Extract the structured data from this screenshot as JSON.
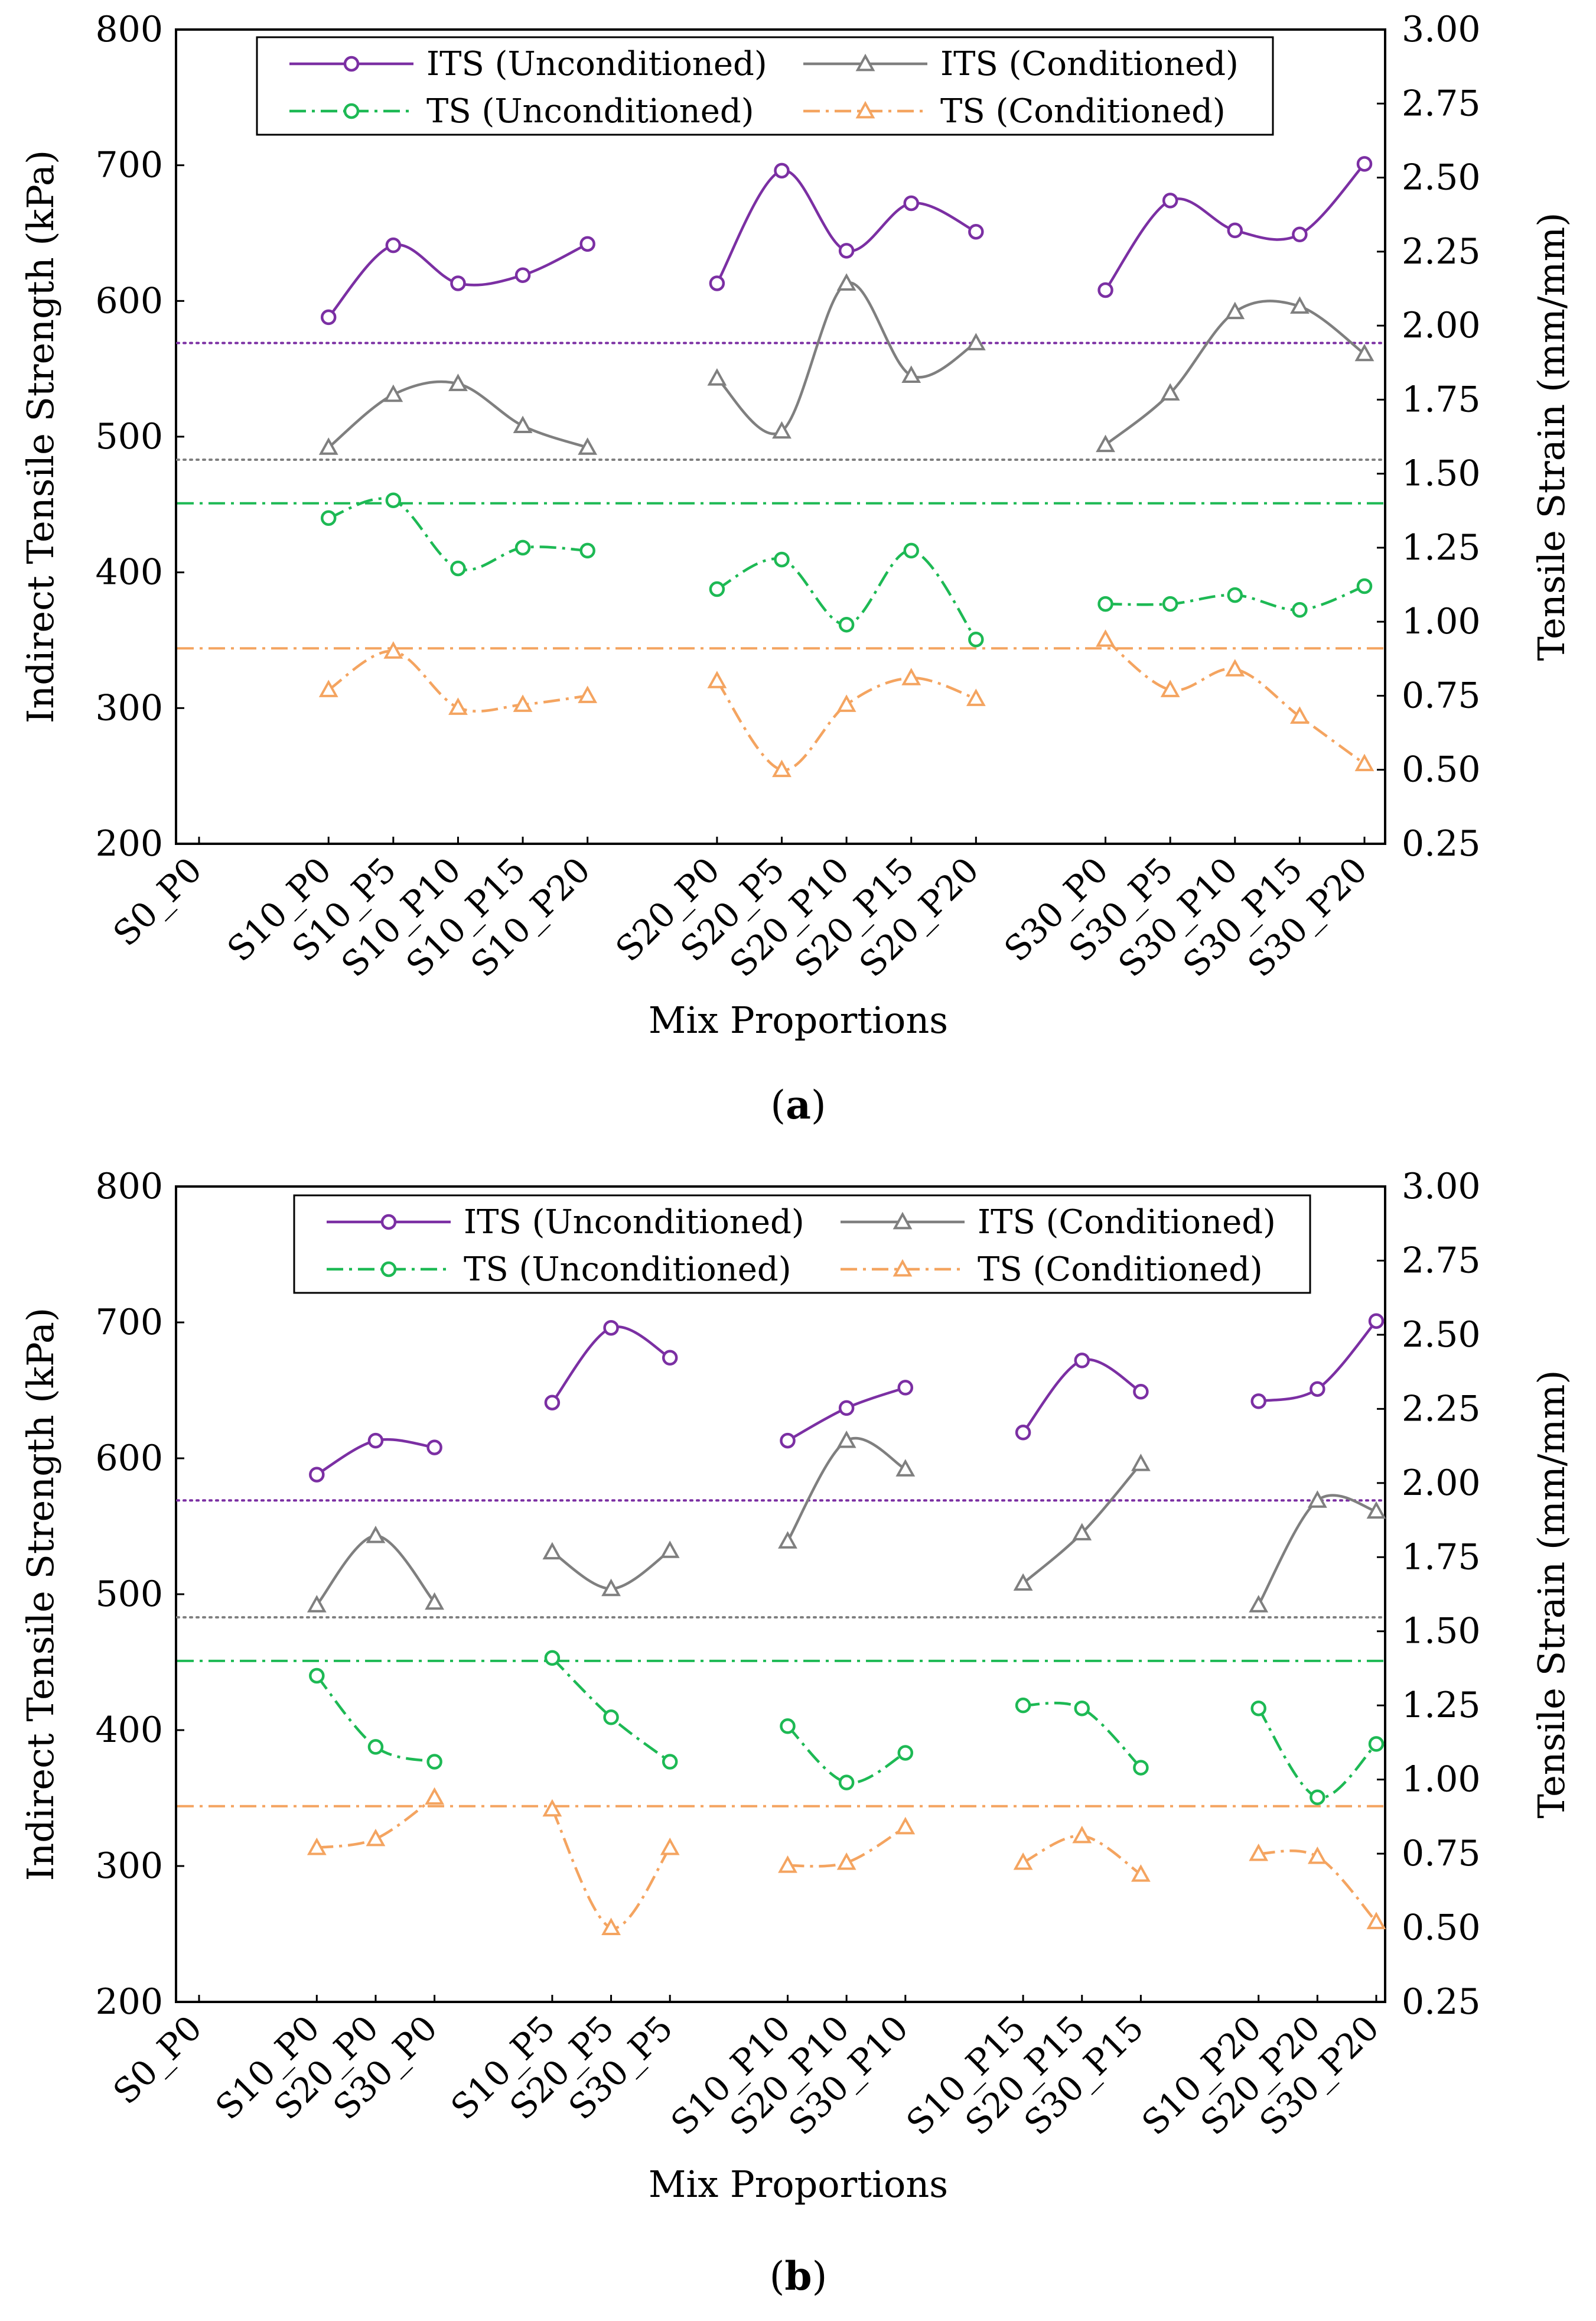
{
  "chart_data": [
    {
      "panel": "(a)",
      "caption_prefix": "(",
      "caption_letter": "a",
      "caption_suffix": ")",
      "type": "line",
      "xlabel": "Mix Proportions",
      "ylabel": "Indirect Tensile Strength (kPa)",
      "y2label": "Tensile Strain (mm/mm)",
      "ylim": [
        200,
        800
      ],
      "y2lim": [
        0.25,
        3.0
      ],
      "yticks": [
        "200",
        "300",
        "400",
        "500",
        "600",
        "700",
        "800"
      ],
      "y2ticks": [
        "0.25",
        "0.50",
        "0.75",
        "1.00",
        "1.25",
        "1.50",
        "1.75",
        "2.00",
        "2.25",
        "2.50",
        "2.75",
        "3.00"
      ],
      "categories": [
        "S0_P0",
        "",
        "S10_P0",
        "S10_P5",
        "S10_P10",
        "S10_P15",
        "S10_P20",
        "",
        "S20_P0",
        "S20_P5",
        "S20_P10",
        "S20_P15",
        "S20_P20",
        "",
        "S30_P0",
        "S30_P5",
        "S30_P10",
        "S30_P15",
        "S30_P20"
      ],
      "groups": [
        [
          2,
          6
        ],
        [
          8,
          12
        ],
        [
          14,
          18
        ]
      ],
      "series": [
        {
          "name": "ITS (Unconditioned)",
          "axis": "left",
          "color": "#7B2FA3",
          "marker": "circle",
          "dash": "solid",
          "values": [
            null,
            null,
            588,
            641,
            613,
            619,
            642,
            null,
            613,
            696,
            637,
            672,
            651,
            null,
            608,
            674,
            652,
            649,
            701
          ]
        },
        {
          "name": "ITS (Conditioned)",
          "axis": "left",
          "color": "#7F7F7F",
          "marker": "triangle",
          "dash": "solid",
          "values": [
            null,
            null,
            492,
            531,
            539,
            508,
            492,
            null,
            543,
            504,
            613,
            545,
            569,
            null,
            494,
            532,
            592,
            596,
            561
          ]
        },
        {
          "name": "TS (Unconditioned)",
          "axis": "right",
          "color": "#1DB954",
          "marker": "circle",
          "dash": "dashdot",
          "values": [
            null,
            null,
            1.35,
            1.41,
            1.18,
            1.25,
            1.24,
            null,
            1.11,
            1.21,
            0.99,
            1.24,
            0.94,
            null,
            1.06,
            1.06,
            1.09,
            1.04,
            1.12
          ]
        },
        {
          "name": "TS (Conditioned)",
          "axis": "right",
          "color": "#F4A460",
          "marker": "triangle",
          "dash": "dashdot",
          "values": [
            null,
            null,
            0.77,
            0.9,
            0.71,
            0.72,
            0.75,
            null,
            0.8,
            0.5,
            0.72,
            0.81,
            0.74,
            null,
            0.94,
            0.77,
            0.84,
            0.68,
            0.52
          ]
        }
      ],
      "reference_lines": [
        {
          "axis": "left",
          "value": 569,
          "color": "#7B2FA3",
          "dash": "dotted"
        },
        {
          "axis": "left",
          "value": 483,
          "color": "#7F7F7F",
          "dash": "dotted"
        },
        {
          "axis": "right",
          "value": 1.4,
          "color": "#1DB954",
          "dash": "dashdot"
        },
        {
          "axis": "right",
          "value": 0.91,
          "color": "#F4A460",
          "dash": "dashdot"
        }
      ],
      "legend_position": "top"
    },
    {
      "panel": "(b)",
      "caption_prefix": "(",
      "caption_letter": "b",
      "caption_suffix": ")",
      "type": "line",
      "xlabel": "Mix Proportions",
      "ylabel": "Indirect Tensile Strength (kPa)",
      "y2label": "Tensile Strain (mm/mm)",
      "ylim": [
        200,
        800
      ],
      "y2lim": [
        0.25,
        3.0
      ],
      "yticks": [
        "200",
        "300",
        "400",
        "500",
        "600",
        "700",
        "800"
      ],
      "y2ticks": [
        "0.25",
        "0.50",
        "0.75",
        "1.00",
        "1.25",
        "1.50",
        "1.75",
        "2.00",
        "2.25",
        "2.50",
        "2.75",
        "3.00"
      ],
      "categories": [
        "S0_P0",
        "",
        "S10_P0",
        "S20_P0",
        "S30_P0",
        "",
        "S10_P5",
        "S20_P5",
        "S30_P5",
        "",
        "S10_P10",
        "S20_P10",
        "S30_P10",
        "",
        "S10_P15",
        "S20_P15",
        "S30_P15",
        "",
        "S10_P20",
        "S20_P20",
        "S30_P20"
      ],
      "groups": [
        [
          2,
          4
        ],
        [
          6,
          8
        ],
        [
          10,
          12
        ],
        [
          14,
          16
        ],
        [
          18,
          20
        ]
      ],
      "series": [
        {
          "name": "ITS (Unconditioned)",
          "axis": "left",
          "color": "#7B2FA3",
          "marker": "circle",
          "dash": "solid",
          "values": [
            null,
            null,
            588,
            613,
            608,
            null,
            641,
            696,
            674,
            null,
            613,
            637,
            652,
            null,
            619,
            672,
            649,
            null,
            642,
            651,
            701
          ]
        },
        {
          "name": "ITS (Conditioned)",
          "axis": "left",
          "color": "#7F7F7F",
          "marker": "triangle",
          "dash": "solid",
          "values": [
            null,
            null,
            492,
            543,
            494,
            null,
            531,
            504,
            532,
            null,
            539,
            613,
            592,
            null,
            508,
            545,
            596,
            null,
            492,
            569,
            561
          ]
        },
        {
          "name": "TS (Unconditioned)",
          "axis": "right",
          "color": "#1DB954",
          "marker": "circle",
          "dash": "dashdot",
          "values": [
            null,
            null,
            1.35,
            1.11,
            1.06,
            null,
            1.41,
            1.21,
            1.06,
            null,
            1.18,
            0.99,
            1.09,
            null,
            1.25,
            1.24,
            1.04,
            null,
            1.24,
            0.94,
            1.12
          ]
        },
        {
          "name": "TS (Conditioned)",
          "axis": "right",
          "color": "#F4A460",
          "marker": "triangle",
          "dash": "dashdot",
          "values": [
            null,
            null,
            0.77,
            0.8,
            0.94,
            null,
            0.9,
            0.5,
            0.77,
            null,
            0.71,
            0.72,
            0.84,
            null,
            0.72,
            0.81,
            0.68,
            null,
            0.75,
            0.74,
            0.52
          ]
        }
      ],
      "reference_lines": [
        {
          "axis": "left",
          "value": 569,
          "color": "#7B2FA3",
          "dash": "dotted"
        },
        {
          "axis": "left",
          "value": 483,
          "color": "#7F7F7F",
          "dash": "dotted"
        },
        {
          "axis": "right",
          "value": 1.4,
          "color": "#1DB954",
          "dash": "dashdot"
        },
        {
          "axis": "right",
          "value": 0.91,
          "color": "#F4A460",
          "dash": "dashdot"
        }
      ],
      "legend_position": "top"
    }
  ]
}
